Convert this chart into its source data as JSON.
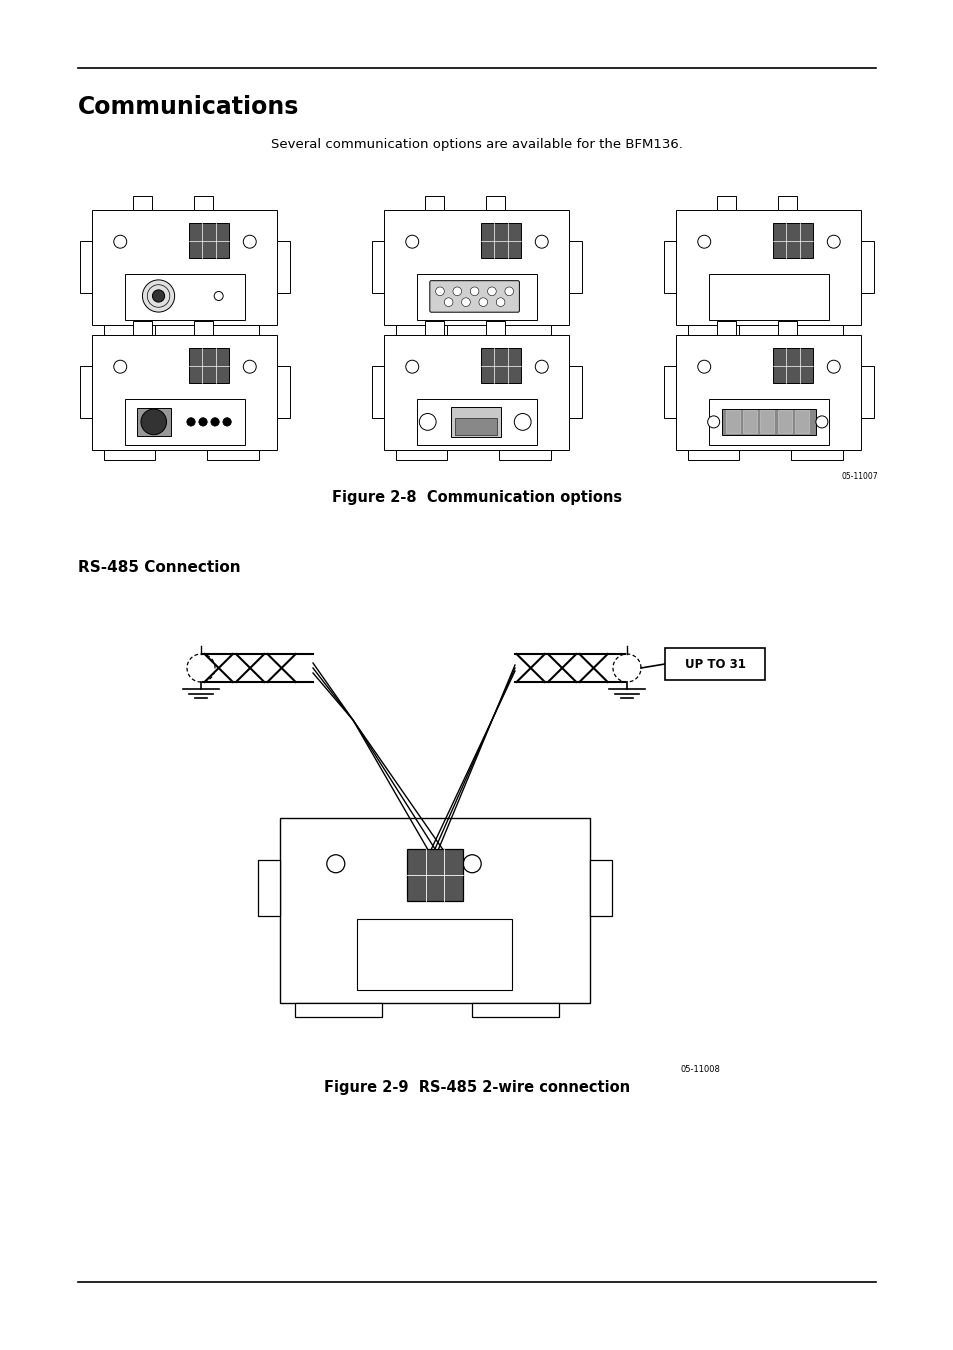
{
  "bg_color": "#ffffff",
  "text_color": "#000000",
  "line_color": "#000000",
  "title": "Communications",
  "subtitle": "Several communication options are available for the BFM136.",
  "fig2_8_caption": "Figure 2-8  Communication options",
  "section_header": "RS-485 Connection",
  "fig2_9_caption": "Figure 2-9  RS-485 2-wire connection",
  "title_fontsize": 17,
  "subtitle_fontsize": 9.5,
  "caption_fontsize": 10.5,
  "section_fontsize": 11,
  "fig_small_code": "05-11007",
  "fig_large_code": "05-11008"
}
